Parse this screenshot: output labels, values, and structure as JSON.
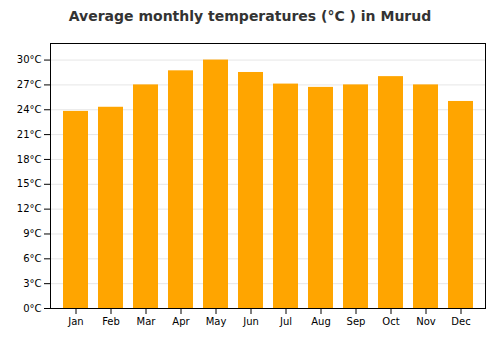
{
  "chart_data": {
    "type": "bar",
    "title": "Average monthly temperatures (°C ) in Murud",
    "categories": [
      "Jan",
      "Feb",
      "Mar",
      "Apr",
      "May",
      "Jun",
      "Jul",
      "Aug",
      "Sep",
      "Oct",
      "Nov",
      "Dec"
    ],
    "values": [
      23.8,
      24.3,
      27.0,
      28.7,
      30.0,
      28.5,
      27.1,
      26.7,
      27.0,
      28.0,
      27.0,
      25.0
    ],
    "color": "#FFA500",
    "ylim": [
      0,
      32
    ],
    "yticks": [
      {
        "value": 0,
        "label": "0°C"
      },
      {
        "value": 3,
        "label": "3°C"
      },
      {
        "value": 6,
        "label": "6°C"
      },
      {
        "value": 9,
        "label": "9°C"
      },
      {
        "value": 12,
        "label": "12°C"
      },
      {
        "value": 15,
        "label": "15°C"
      },
      {
        "value": 18,
        "label": "18°C"
      },
      {
        "value": 21,
        "label": "21°C"
      },
      {
        "value": 24,
        "label": "24°C"
      },
      {
        "value": 27,
        "label": "27°C"
      },
      {
        "value": 30,
        "label": "30°C"
      }
    ],
    "grid": true
  }
}
